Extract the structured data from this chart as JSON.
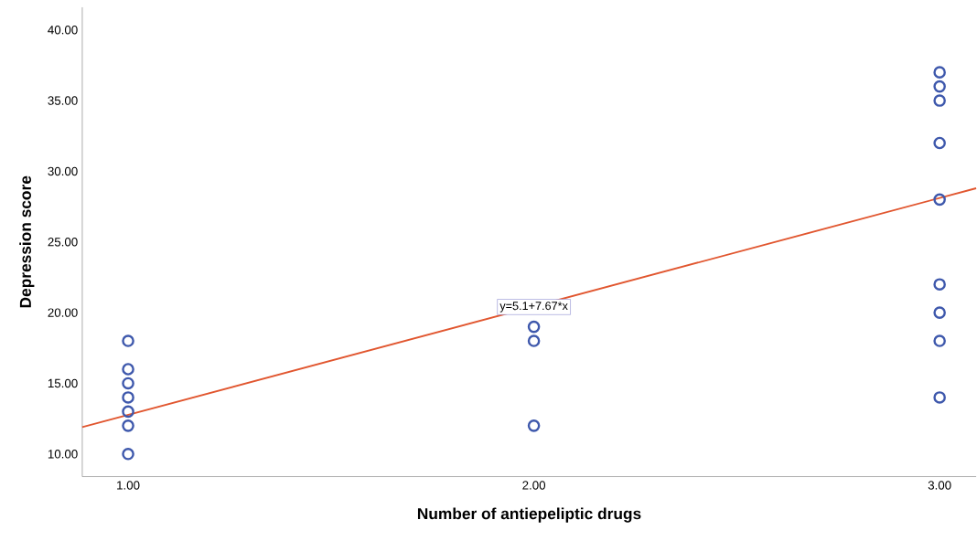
{
  "chart_data": {
    "type": "scatter",
    "xlabel": "Number of antiepeliptic drugs",
    "ylabel": "Depression score",
    "xlim": [
      0.887,
      3.09
    ],
    "ylim": [
      8.4,
      41.6
    ],
    "xticks": [
      {
        "value": 1,
        "label": "1.00"
      },
      {
        "value": 2,
        "label": "2.00"
      },
      {
        "value": 3,
        "label": "3.00"
      }
    ],
    "yticks": [
      {
        "value": 10,
        "label": "10.00"
      },
      {
        "value": 15,
        "label": "15.00"
      },
      {
        "value": 20,
        "label": "20.00"
      },
      {
        "value": 25,
        "label": "25.00"
      },
      {
        "value": 30,
        "label": "30.00"
      },
      {
        "value": 35,
        "label": "35.00"
      },
      {
        "value": 40,
        "label": "40.00"
      }
    ],
    "grid": false,
    "series": [
      {
        "marker": "circle",
        "color": "#3e58ac",
        "x": [
          1,
          1,
          1,
          1,
          1,
          1,
          1,
          2,
          2,
          2,
          3,
          3,
          3,
          3,
          3,
          3,
          3,
          3,
          3
        ],
        "values": [
          18,
          16,
          15,
          14,
          13,
          12,
          10,
          19,
          18,
          12,
          37,
          36,
          35,
          32,
          28,
          22,
          20,
          18,
          14
        ]
      },
      {
        "type": "line",
        "color": "#e1562f",
        "x": [
          0.887,
          3.09
        ],
        "values": [
          11.9,
          28.8
        ]
      }
    ],
    "annotations": [
      {
        "text": "y=5.1+7.67*x",
        "x": 2,
        "y": 20.4
      }
    ]
  }
}
